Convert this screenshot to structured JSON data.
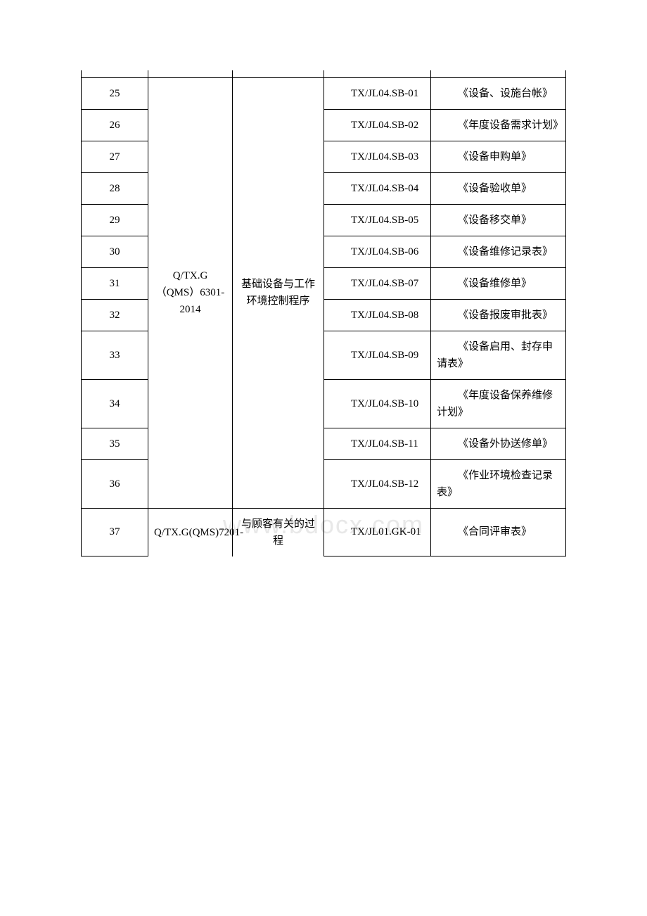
{
  "watermark": "www.bdocx.com",
  "table": {
    "group1": {
      "doc": "Q/TX.G（QMS）6301-2014",
      "name": "基础设备与工作环境控制程序",
      "spacer_rows": 4,
      "rows": [
        {
          "seq": "25",
          "code": "TX/JL04.SB-01",
          "title": "《设备、设施台帐》"
        },
        {
          "seq": "26",
          "code": "TX/JL04.SB-02",
          "title": "《年度设备需求计划》"
        },
        {
          "seq": "27",
          "code": "TX/JL04.SB-03",
          "title": "《设备申购单》"
        },
        {
          "seq": "28",
          "code": "TX/JL04.SB-04",
          "title": "《设备验收单》"
        },
        {
          "seq": "29",
          "code": "TX/JL04.SB-05",
          "title": "《设备移交单》"
        },
        {
          "seq": "30",
          "code": "TX/JL04.SB-06",
          "title": "《设备维修记录表》"
        },
        {
          "seq": "31",
          "code": "TX/JL04.SB-07",
          "title": "《设备维修单》"
        },
        {
          "seq": "32",
          "code": "TX/JL04.SB-08",
          "title": "《设备报废审批表》"
        },
        {
          "seq": "33",
          "code": "TX/JL04.SB-09",
          "title": "《设备启用、封存申请表》"
        },
        {
          "seq": "34",
          "code": "TX/JL04.SB-10",
          "title": "《年度设备保养维修计划》"
        },
        {
          "seq": "35",
          "code": "TX/JL04.SB-11",
          "title": "《设备外协送修单》"
        },
        {
          "seq": "36",
          "code": "TX/JL04.SB-12",
          "title": "《作业环境检查记录表》"
        }
      ]
    },
    "group2": {
      "doc": "Q/TX.G(QMS)7201-",
      "name": "与顾客有关的过程",
      "rows": [
        {
          "seq": "37",
          "code": "TX/JL01.GK-01",
          "title": "《合同评审表》"
        }
      ]
    }
  }
}
